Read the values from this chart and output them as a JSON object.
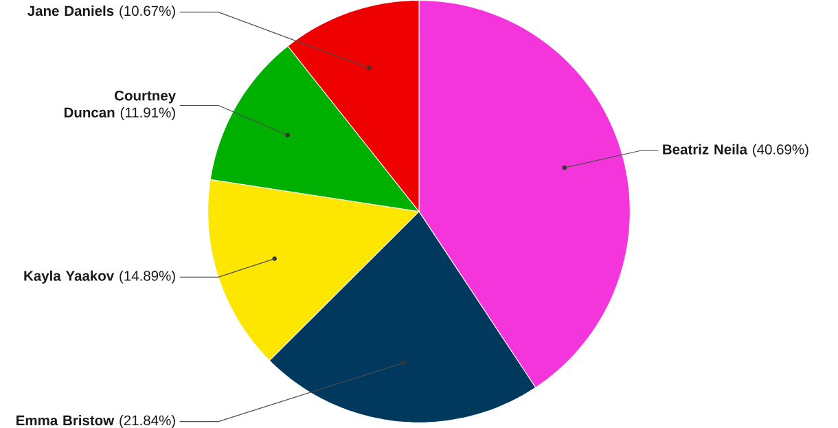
{
  "chart_data": {
    "type": "pie",
    "categories": [
      "Beatriz Neila",
      "Emma Bristow",
      "Kayla Yaakov",
      "Courtney Duncan",
      "Jane Daniels"
    ],
    "values": [
      40.69,
      21.84,
      14.89,
      11.91,
      10.67
    ],
    "colors": [
      "#f535dc",
      "#01385e",
      "#fde600",
      "#00b000",
      "#ee0000"
    ],
    "value_labels": [
      "(40.69%)",
      "(21.84%)",
      "(14.89%)",
      "(11.91%)",
      "(10.67%)"
    ]
  }
}
